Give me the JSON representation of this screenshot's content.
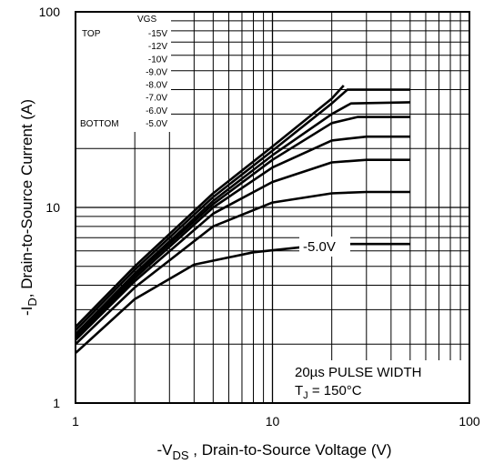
{
  "chart_data": {
    "type": "line",
    "x_scale": "log",
    "y_scale": "log",
    "xlim": [
      1,
      100
    ],
    "ylim": [
      1,
      100
    ],
    "grid": true,
    "xlabel_main": "-V",
    "xlabel_sub": "DS",
    "xlabel_rest": " , Drain-to-Source Voltage (V)",
    "ylabel_main": "-I",
    "ylabel_sub": "D",
    "ylabel_rest": ",  Drain-to-Source Current (A)",
    "x_ticks": [
      {
        "value": 1,
        "label": "1"
      },
      {
        "value": 10,
        "label": "10"
      },
      {
        "value": 100,
        "label": "100"
      }
    ],
    "y_ticks": [
      {
        "value": 1,
        "label": "1"
      },
      {
        "value": 10,
        "label": "10"
      },
      {
        "value": 100,
        "label": "100"
      }
    ],
    "legend": {
      "position": "top-left",
      "header": "VGS",
      "top_label": "TOP",
      "bottom_label": "BOTTOM",
      "entries": [
        "-15V",
        "-12V",
        "-10V",
        "-9.0V",
        "-8.0V",
        "-7.0V",
        "-6.0V",
        "-5.0V"
      ]
    },
    "annotations": {
      "curve_label": "-5.0V",
      "conditions_line1": "20µs PULSE WIDTH",
      "conditions_line2_main": "T",
      "conditions_line2_sub": "J",
      "conditions_line2_rest": " = 150°C"
    },
    "series": [
      {
        "name": "-15V",
        "points": [
          [
            1,
            2.45
          ],
          [
            2,
            5.0
          ],
          [
            5,
            11.8
          ],
          [
            10,
            20.5
          ],
          [
            20,
            36.0
          ],
          [
            23,
            42.0
          ]
        ]
      },
      {
        "name": "-12V",
        "points": [
          [
            1,
            2.35
          ],
          [
            2,
            4.8
          ],
          [
            5,
            11.3
          ],
          [
            10,
            19.5
          ],
          [
            20,
            34.0
          ],
          [
            24,
            40.0
          ],
          [
            50,
            40.0
          ]
        ]
      },
      {
        "name": "-10V",
        "points": [
          [
            1,
            2.25
          ],
          [
            2,
            4.6
          ],
          [
            5,
            10.8
          ],
          [
            10,
            18.5
          ],
          [
            20,
            30.0
          ],
          [
            25,
            34.0
          ],
          [
            50,
            34.5
          ]
        ]
      },
      {
        "name": "-9.0V",
        "points": [
          [
            1,
            2.2
          ],
          [
            2,
            4.5
          ],
          [
            5,
            10.4
          ],
          [
            10,
            17.5
          ],
          [
            20,
            27.0
          ],
          [
            27,
            29.0
          ],
          [
            50,
            29.0
          ]
        ]
      },
      {
        "name": "-8.0V",
        "points": [
          [
            1,
            2.15
          ],
          [
            2,
            4.35
          ],
          [
            5,
            10.0
          ],
          [
            10,
            16.0
          ],
          [
            20,
            22.0
          ],
          [
            30,
            23.0
          ],
          [
            50,
            23.0
          ]
        ]
      },
      {
        "name": "-7.0V",
        "points": [
          [
            1,
            2.1
          ],
          [
            2,
            4.2
          ],
          [
            5,
            9.3
          ],
          [
            10,
            13.5
          ],
          [
            20,
            17.0
          ],
          [
            30,
            17.5
          ],
          [
            50,
            17.5
          ]
        ]
      },
      {
        "name": "-6.0V",
        "points": [
          [
            1,
            2.0
          ],
          [
            2,
            3.9
          ],
          [
            5,
            8.0
          ],
          [
            10,
            10.6
          ],
          [
            20,
            11.8
          ],
          [
            30,
            12.0
          ],
          [
            50,
            12.0
          ]
        ]
      },
      {
        "name": "-5.0V",
        "points": [
          [
            1,
            1.8
          ],
          [
            2,
            3.4
          ],
          [
            4,
            5.1
          ],
          [
            8,
            5.9
          ],
          [
            15,
            6.3
          ],
          [
            25,
            6.5
          ],
          [
            50,
            6.5
          ]
        ]
      }
    ]
  }
}
